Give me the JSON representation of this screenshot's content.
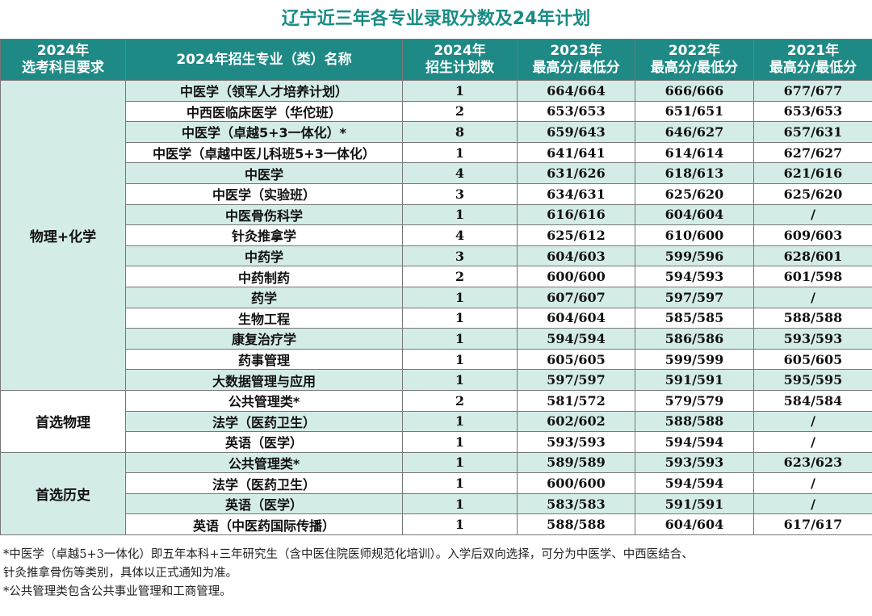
{
  "title": "辽宁近三年各专业录取分数及24年计划",
  "headers": {
    "req": [
      "2024年",
      "选考科目要求"
    ],
    "major": "2024年招生专业（类）名称",
    "plan": [
      "2024年",
      "招生计划数"
    ],
    "y2023": [
      "2023年",
      "最高分/最低分"
    ],
    "y2022": [
      "2022年",
      "最高分/最低分"
    ],
    "y2021": [
      "2021年",
      "最高分/最低分"
    ]
  },
  "groups": [
    {
      "requirement": "物理+化学",
      "rows": [
        {
          "major": "中医学（领军人才培养计划）",
          "plan": "1",
          "y2023": "664/664",
          "y2022": "666/666",
          "y2021": "677/677"
        },
        {
          "major": "中西医临床医学（华佗班）",
          "plan": "2",
          "y2023": "653/653",
          "y2022": "651/651",
          "y2021": "653/653"
        },
        {
          "major": "中医学（卓越5+3一体化）*",
          "plan": "8",
          "y2023": "659/643",
          "y2022": "646/627",
          "y2021": "657/631"
        },
        {
          "major": "中医学（卓越中医儿科班5+3一体化）",
          "plan": "1",
          "y2023": "641/641",
          "y2022": "614/614",
          "y2021": "627/627"
        },
        {
          "major": "中医学",
          "plan": "4",
          "y2023": "631/626",
          "y2022": "618/613",
          "y2021": "621/616"
        },
        {
          "major": "中医学（实验班）",
          "plan": "3",
          "y2023": "634/631",
          "y2022": "625/620",
          "y2021": "625/620"
        },
        {
          "major": "中医骨伤科学",
          "plan": "1",
          "y2023": "616/616",
          "y2022": "604/604",
          "y2021": "/"
        },
        {
          "major": "针灸推拿学",
          "plan": "4",
          "y2023": "625/612",
          "y2022": "610/600",
          "y2021": "609/603"
        },
        {
          "major": "中药学",
          "plan": "3",
          "y2023": "604/603",
          "y2022": "599/596",
          "y2021": "628/601"
        },
        {
          "major": "中药制药",
          "plan": "2",
          "y2023": "600/600",
          "y2022": "594/593",
          "y2021": "601/598"
        },
        {
          "major": "药学",
          "plan": "1",
          "y2023": "607/607",
          "y2022": "597/597",
          "y2021": "/"
        },
        {
          "major": "生物工程",
          "plan": "1",
          "y2023": "604/604",
          "y2022": "585/585",
          "y2021": "588/588"
        },
        {
          "major": "康复治疗学",
          "plan": "1",
          "y2023": "594/594",
          "y2022": "586/586",
          "y2021": "593/593"
        },
        {
          "major": "药事管理",
          "plan": "1",
          "y2023": "605/605",
          "y2022": "599/599",
          "y2021": "605/605"
        },
        {
          "major": "大数据管理与应用",
          "plan": "1",
          "y2023": "597/597",
          "y2022": "591/591",
          "y2021": "595/595"
        }
      ]
    },
    {
      "requirement": "首选物理",
      "rows": [
        {
          "major": "公共管理类*",
          "plan": "2",
          "y2023": "581/572",
          "y2022": "579/579",
          "y2021": "584/584"
        },
        {
          "major": "法学（医药卫生）",
          "plan": "1",
          "y2023": "602/602",
          "y2022": "588/588",
          "y2021": "/"
        },
        {
          "major": "英语（医学）",
          "plan": "1",
          "y2023": "593/593",
          "y2022": "594/594",
          "y2021": "/"
        }
      ]
    },
    {
      "requirement": "首选历史",
      "rows": [
        {
          "major": "公共管理类*",
          "plan": "1",
          "y2023": "589/589",
          "y2022": "593/593",
          "y2021": "623/623"
        },
        {
          "major": "法学（医药卫生）",
          "plan": "1",
          "y2023": "600/600",
          "y2022": "594/594",
          "y2021": "/"
        },
        {
          "major": "英语（医学）",
          "plan": "1",
          "y2023": "583/583",
          "y2022": "591/591",
          "y2021": "/"
        },
        {
          "major": "英语（中医药国际传播）",
          "plan": "1",
          "y2023": "588/588",
          "y2022": "604/604",
          "y2021": "617/617"
        }
      ]
    }
  ],
  "notes": [
    "*中医学（卓越5+3一体化）即五年本科+三年研究生（含中医住院医师规范化培训）。入学后双向选择，可分为中医学、中西医结合、",
    "针灸推拿骨伤等类别，具体以正式通知为准。",
    "*公共管理类包含公共事业管理和工商管理。"
  ],
  "colors": {
    "title": "#1a8c86",
    "header_bg": "#1f8a85",
    "row_alt": "#d4ece8",
    "row_plain": "#ffffff"
  }
}
